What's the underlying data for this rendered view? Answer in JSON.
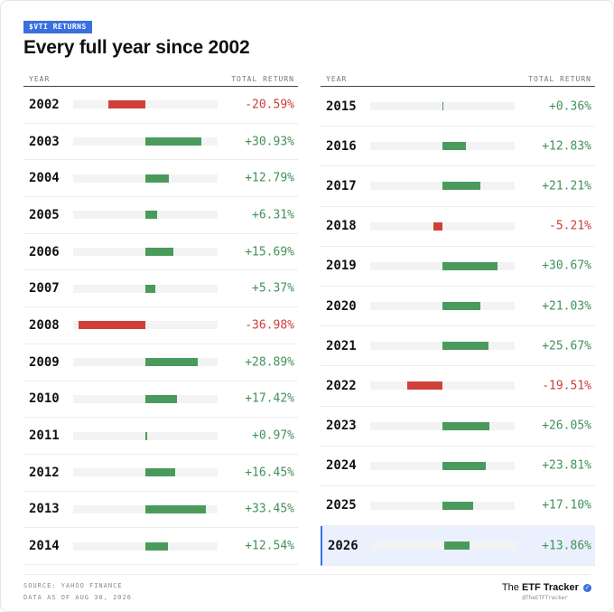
{
  "badge": "$VTI RETURNS",
  "title": "Every full year since 2002",
  "columns": {
    "year": "YEAR",
    "return": "TOTAL RETURN"
  },
  "chart_data": {
    "type": "bar",
    "title": "Every full year since 2002",
    "xlim": [
      -40,
      40
    ],
    "left_rows": [
      {
        "year": "2002",
        "value": -20.59,
        "label": "-20.59%"
      },
      {
        "year": "2003",
        "value": 30.93,
        "label": "+30.93%"
      },
      {
        "year": "2004",
        "value": 12.79,
        "label": "+12.79%"
      },
      {
        "year": "2005",
        "value": 6.31,
        "label": "+6.31%"
      },
      {
        "year": "2006",
        "value": 15.69,
        "label": "+15.69%"
      },
      {
        "year": "2007",
        "value": 5.37,
        "label": "+5.37%"
      },
      {
        "year": "2008",
        "value": -36.98,
        "label": "-36.98%"
      },
      {
        "year": "2009",
        "value": 28.89,
        "label": "+28.89%"
      },
      {
        "year": "2010",
        "value": 17.42,
        "label": "+17.42%"
      },
      {
        "year": "2011",
        "value": 0.97,
        "label": "+0.97%"
      },
      {
        "year": "2012",
        "value": 16.45,
        "label": "+16.45%"
      },
      {
        "year": "2013",
        "value": 33.45,
        "label": "+33.45%"
      },
      {
        "year": "2014",
        "value": 12.54,
        "label": "+12.54%"
      }
    ],
    "right_rows": [
      {
        "year": "2015",
        "value": 0.36,
        "label": "+0.36%"
      },
      {
        "year": "2016",
        "value": 12.83,
        "label": "+12.83%"
      },
      {
        "year": "2017",
        "value": 21.21,
        "label": "+21.21%"
      },
      {
        "year": "2018",
        "value": -5.21,
        "label": "-5.21%"
      },
      {
        "year": "2019",
        "value": 30.67,
        "label": "+30.67%"
      },
      {
        "year": "2020",
        "value": 21.03,
        "label": "+21.03%"
      },
      {
        "year": "2021",
        "value": 25.67,
        "label": "+25.67%"
      },
      {
        "year": "2022",
        "value": -19.51,
        "label": "-19.51%"
      },
      {
        "year": "2023",
        "value": 26.05,
        "label": "+26.05%"
      },
      {
        "year": "2024",
        "value": 23.81,
        "label": "+23.81%"
      },
      {
        "year": "2025",
        "value": 17.1,
        "label": "+17.10%"
      },
      {
        "year": "2026",
        "value": 13.86,
        "label": "+13.86%",
        "highlight": true
      }
    ]
  },
  "colors": {
    "positive": "#4a9a5c",
    "negative": "#d0403a",
    "accent": "#3b6fe0"
  },
  "footer": {
    "source": "SOURCE: YAHOO FINANCE",
    "asof": "DATA AS OF AUG 30, 2026",
    "brand_prefix": "The",
    "brand_name": "ETF Tracker",
    "handle": "@TheETFTracker",
    "verified_icon": "verified-badge-icon"
  }
}
